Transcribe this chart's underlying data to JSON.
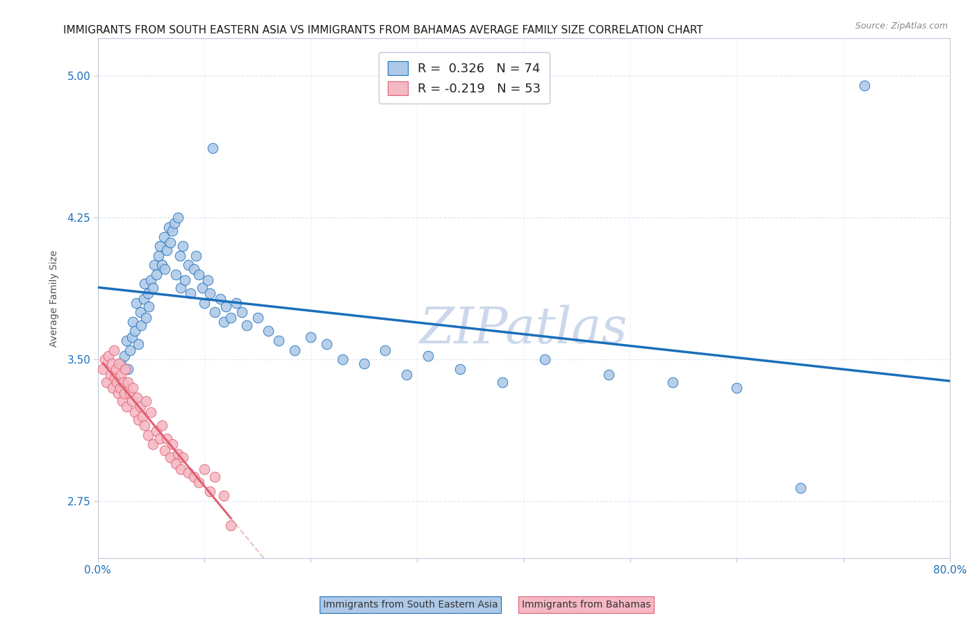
{
  "title": "IMMIGRANTS FROM SOUTH EASTERN ASIA VS IMMIGRANTS FROM BAHAMAS AVERAGE FAMILY SIZE CORRELATION CHART",
  "source": "Source: ZipAtlas.com",
  "ylabel": "Average Family Size",
  "yticks": [
    2.75,
    3.5,
    4.25,
    5.0
  ],
  "xlim": [
    0.0,
    0.8
  ],
  "ylim": [
    2.45,
    5.2
  ],
  "r1": 0.326,
  "n1": 74,
  "r2": -0.219,
  "n2": 53,
  "color_blue": "#aec9e8",
  "color_pink": "#f5b8c4",
  "line_blue": "#1a6fba",
  "line_pink": "#e06070",
  "line_pink_dashed_color": "#e8b0b8",
  "watermark": "ZIPatlas",
  "label1": "Immigrants from South Eastern Asia",
  "label2": "Immigrants from Bahamas",
  "blue_dots_x": [
    0.022,
    0.025,
    0.027,
    0.028,
    0.03,
    0.032,
    0.033,
    0.035,
    0.036,
    0.038,
    0.04,
    0.041,
    0.043,
    0.044,
    0.045,
    0.047,
    0.048,
    0.05,
    0.052,
    0.053,
    0.055,
    0.057,
    0.058,
    0.06,
    0.062,
    0.063,
    0.065,
    0.067,
    0.068,
    0.07,
    0.072,
    0.073,
    0.075,
    0.077,
    0.078,
    0.08,
    0.082,
    0.085,
    0.087,
    0.09,
    0.092,
    0.095,
    0.098,
    0.1,
    0.103,
    0.105,
    0.108,
    0.11,
    0.115,
    0.118,
    0.12,
    0.125,
    0.13,
    0.135,
    0.14,
    0.15,
    0.16,
    0.17,
    0.185,
    0.2,
    0.215,
    0.23,
    0.25,
    0.27,
    0.29,
    0.31,
    0.34,
    0.38,
    0.42,
    0.48,
    0.54,
    0.6,
    0.66,
    0.72
  ],
  "blue_dots_y": [
    3.48,
    3.52,
    3.6,
    3.45,
    3.55,
    3.62,
    3.7,
    3.65,
    3.8,
    3.58,
    3.75,
    3.68,
    3.82,
    3.9,
    3.72,
    3.85,
    3.78,
    3.92,
    3.88,
    4.0,
    3.95,
    4.05,
    4.1,
    4.0,
    4.15,
    3.98,
    4.08,
    4.2,
    4.12,
    4.18,
    4.22,
    3.95,
    4.25,
    4.05,
    3.88,
    4.1,
    3.92,
    4.0,
    3.85,
    3.98,
    4.05,
    3.95,
    3.88,
    3.8,
    3.92,
    3.85,
    4.62,
    3.75,
    3.82,
    3.7,
    3.78,
    3.72,
    3.8,
    3.75,
    3.68,
    3.72,
    3.65,
    3.6,
    3.55,
    3.62,
    3.58,
    3.5,
    3.48,
    3.55,
    3.42,
    3.52,
    3.45,
    3.38,
    3.5,
    3.42,
    3.38,
    3.35,
    2.82,
    4.95
  ],
  "pink_dots_x": [
    0.005,
    0.007,
    0.008,
    0.01,
    0.012,
    0.013,
    0.014,
    0.015,
    0.016,
    0.017,
    0.018,
    0.019,
    0.02,
    0.021,
    0.022,
    0.023,
    0.024,
    0.025,
    0.026,
    0.027,
    0.028,
    0.03,
    0.032,
    0.033,
    0.035,
    0.037,
    0.038,
    0.04,
    0.042,
    0.044,
    0.045,
    0.047,
    0.05,
    0.052,
    0.055,
    0.058,
    0.06,
    0.063,
    0.065,
    0.068,
    0.07,
    0.073,
    0.075,
    0.078,
    0.08,
    0.085,
    0.09,
    0.095,
    0.1,
    0.105,
    0.11,
    0.118,
    0.125
  ],
  "pink_dots_y": [
    3.45,
    3.5,
    3.38,
    3.52,
    3.42,
    3.48,
    3.35,
    3.55,
    3.4,
    3.45,
    3.38,
    3.32,
    3.48,
    3.35,
    3.42,
    3.28,
    3.38,
    3.32,
    3.45,
    3.25,
    3.38,
    3.32,
    3.28,
    3.35,
    3.22,
    3.3,
    3.18,
    3.25,
    3.2,
    3.15,
    3.28,
    3.1,
    3.22,
    3.05,
    3.12,
    3.08,
    3.15,
    3.02,
    3.08,
    2.98,
    3.05,
    2.95,
    3.0,
    2.92,
    2.98,
    2.9,
    2.88,
    2.85,
    2.92,
    2.8,
    2.88,
    2.78,
    2.62
  ],
  "title_fontsize": 11,
  "source_fontsize": 9,
  "axis_label_fontsize": 10,
  "tick_fontsize": 11,
  "legend_fontsize": 13,
  "watermark_fontsize": 52,
  "watermark_color": "#ccd8ea",
  "background_color": "#ffffff",
  "grid_color": "#dce8f4",
  "axis_color": "#c0c8d8",
  "tick_color": "#1a6fba"
}
